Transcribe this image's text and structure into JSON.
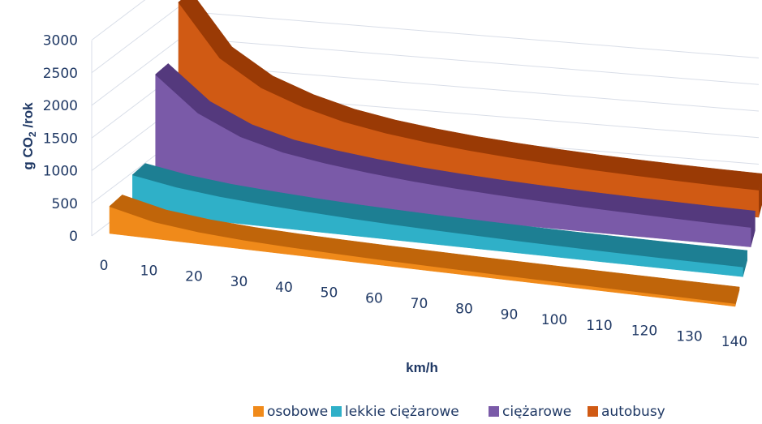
{
  "chart_data": {
    "type": "area",
    "three_d": true,
    "x": [
      0,
      10,
      20,
      30,
      40,
      50,
      60,
      70,
      80,
      90,
      100,
      110,
      120,
      130,
      140
    ],
    "xlabel": "km/h",
    "ylabel_main": "g CO",
    "ylabel_sub": "2",
    "ylabel_tail": " /rok",
    "ylim": [
      0,
      3000
    ],
    "yticks": [
      "0",
      "500",
      "1000",
      "1500",
      "2000",
      "2500",
      "3000"
    ],
    "grid": true,
    "legend_position": "bottom",
    "series": [
      {
        "name": "osobowe",
        "color": "#f08a1a",
        "dark": "#c0650a",
        "values": [
          500,
          310,
          220,
          170,
          140,
          120,
          105,
          95,
          85,
          78,
          72,
          68,
          64,
          60,
          57
        ]
      },
      {
        "name": "lekkie ciężarowe",
        "color": "#2fb0c8",
        "dark": "#1d7f93",
        "values": [
          700,
          560,
          470,
          410,
          360,
          320,
          290,
          265,
          245,
          228,
          215,
          205,
          196,
          190,
          185
        ]
      },
      {
        "name": "ciężarowe",
        "color": "#7a5aa8",
        "dark": "#54397d",
        "values": [
          2200,
          1550,
          1180,
          960,
          830,
          730,
          650,
          590,
          540,
          500,
          465,
          437,
          412,
          390,
          372
        ]
      },
      {
        "name": "autobusy",
        "color": "#d05a14",
        "dark": "#9a3a05",
        "values": [
          3200,
          2200,
          1700,
          1400,
          1180,
          1030,
          920,
          830,
          760,
          700,
          650,
          610,
          575,
          545,
          520
        ]
      }
    ]
  }
}
